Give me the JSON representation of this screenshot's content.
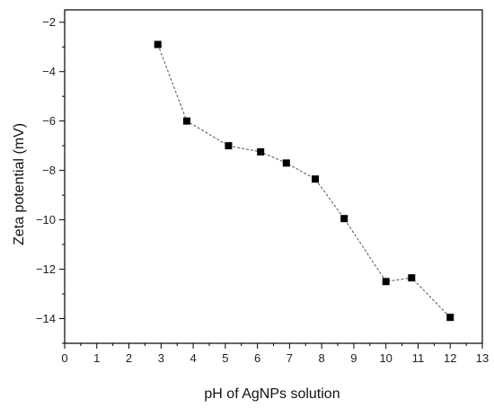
{
  "chart_data": {
    "type": "scatter",
    "title": "",
    "xlabel": "pH  of AgNPs solution",
    "ylabel": "Zeta potential (mV)",
    "xlim": [
      0,
      13
    ],
    "ylim": [
      -15,
      -1.5
    ],
    "x_ticks": [
      0,
      1,
      2,
      3,
      4,
      5,
      6,
      7,
      8,
      9,
      10,
      11,
      12,
      13
    ],
    "y_ticks": [
      -14,
      -12,
      -10,
      -8,
      -6,
      -4,
      -2
    ],
    "grid": false,
    "connected_with_dashed_line": true,
    "marker": "square",
    "series": [
      {
        "x": [
          2.9,
          3.8,
          5.1,
          6.1,
          6.9,
          7.8,
          8.7,
          10.0,
          10.8,
          12.0
        ],
        "y": [
          -2.9,
          -6.0,
          -7.0,
          -7.25,
          -7.7,
          -8.35,
          -9.95,
          -12.5,
          -12.35,
          -13.95
        ]
      }
    ],
    "colors": {
      "marker": "#000000",
      "line": "#555555",
      "axis": "#000000"
    }
  }
}
